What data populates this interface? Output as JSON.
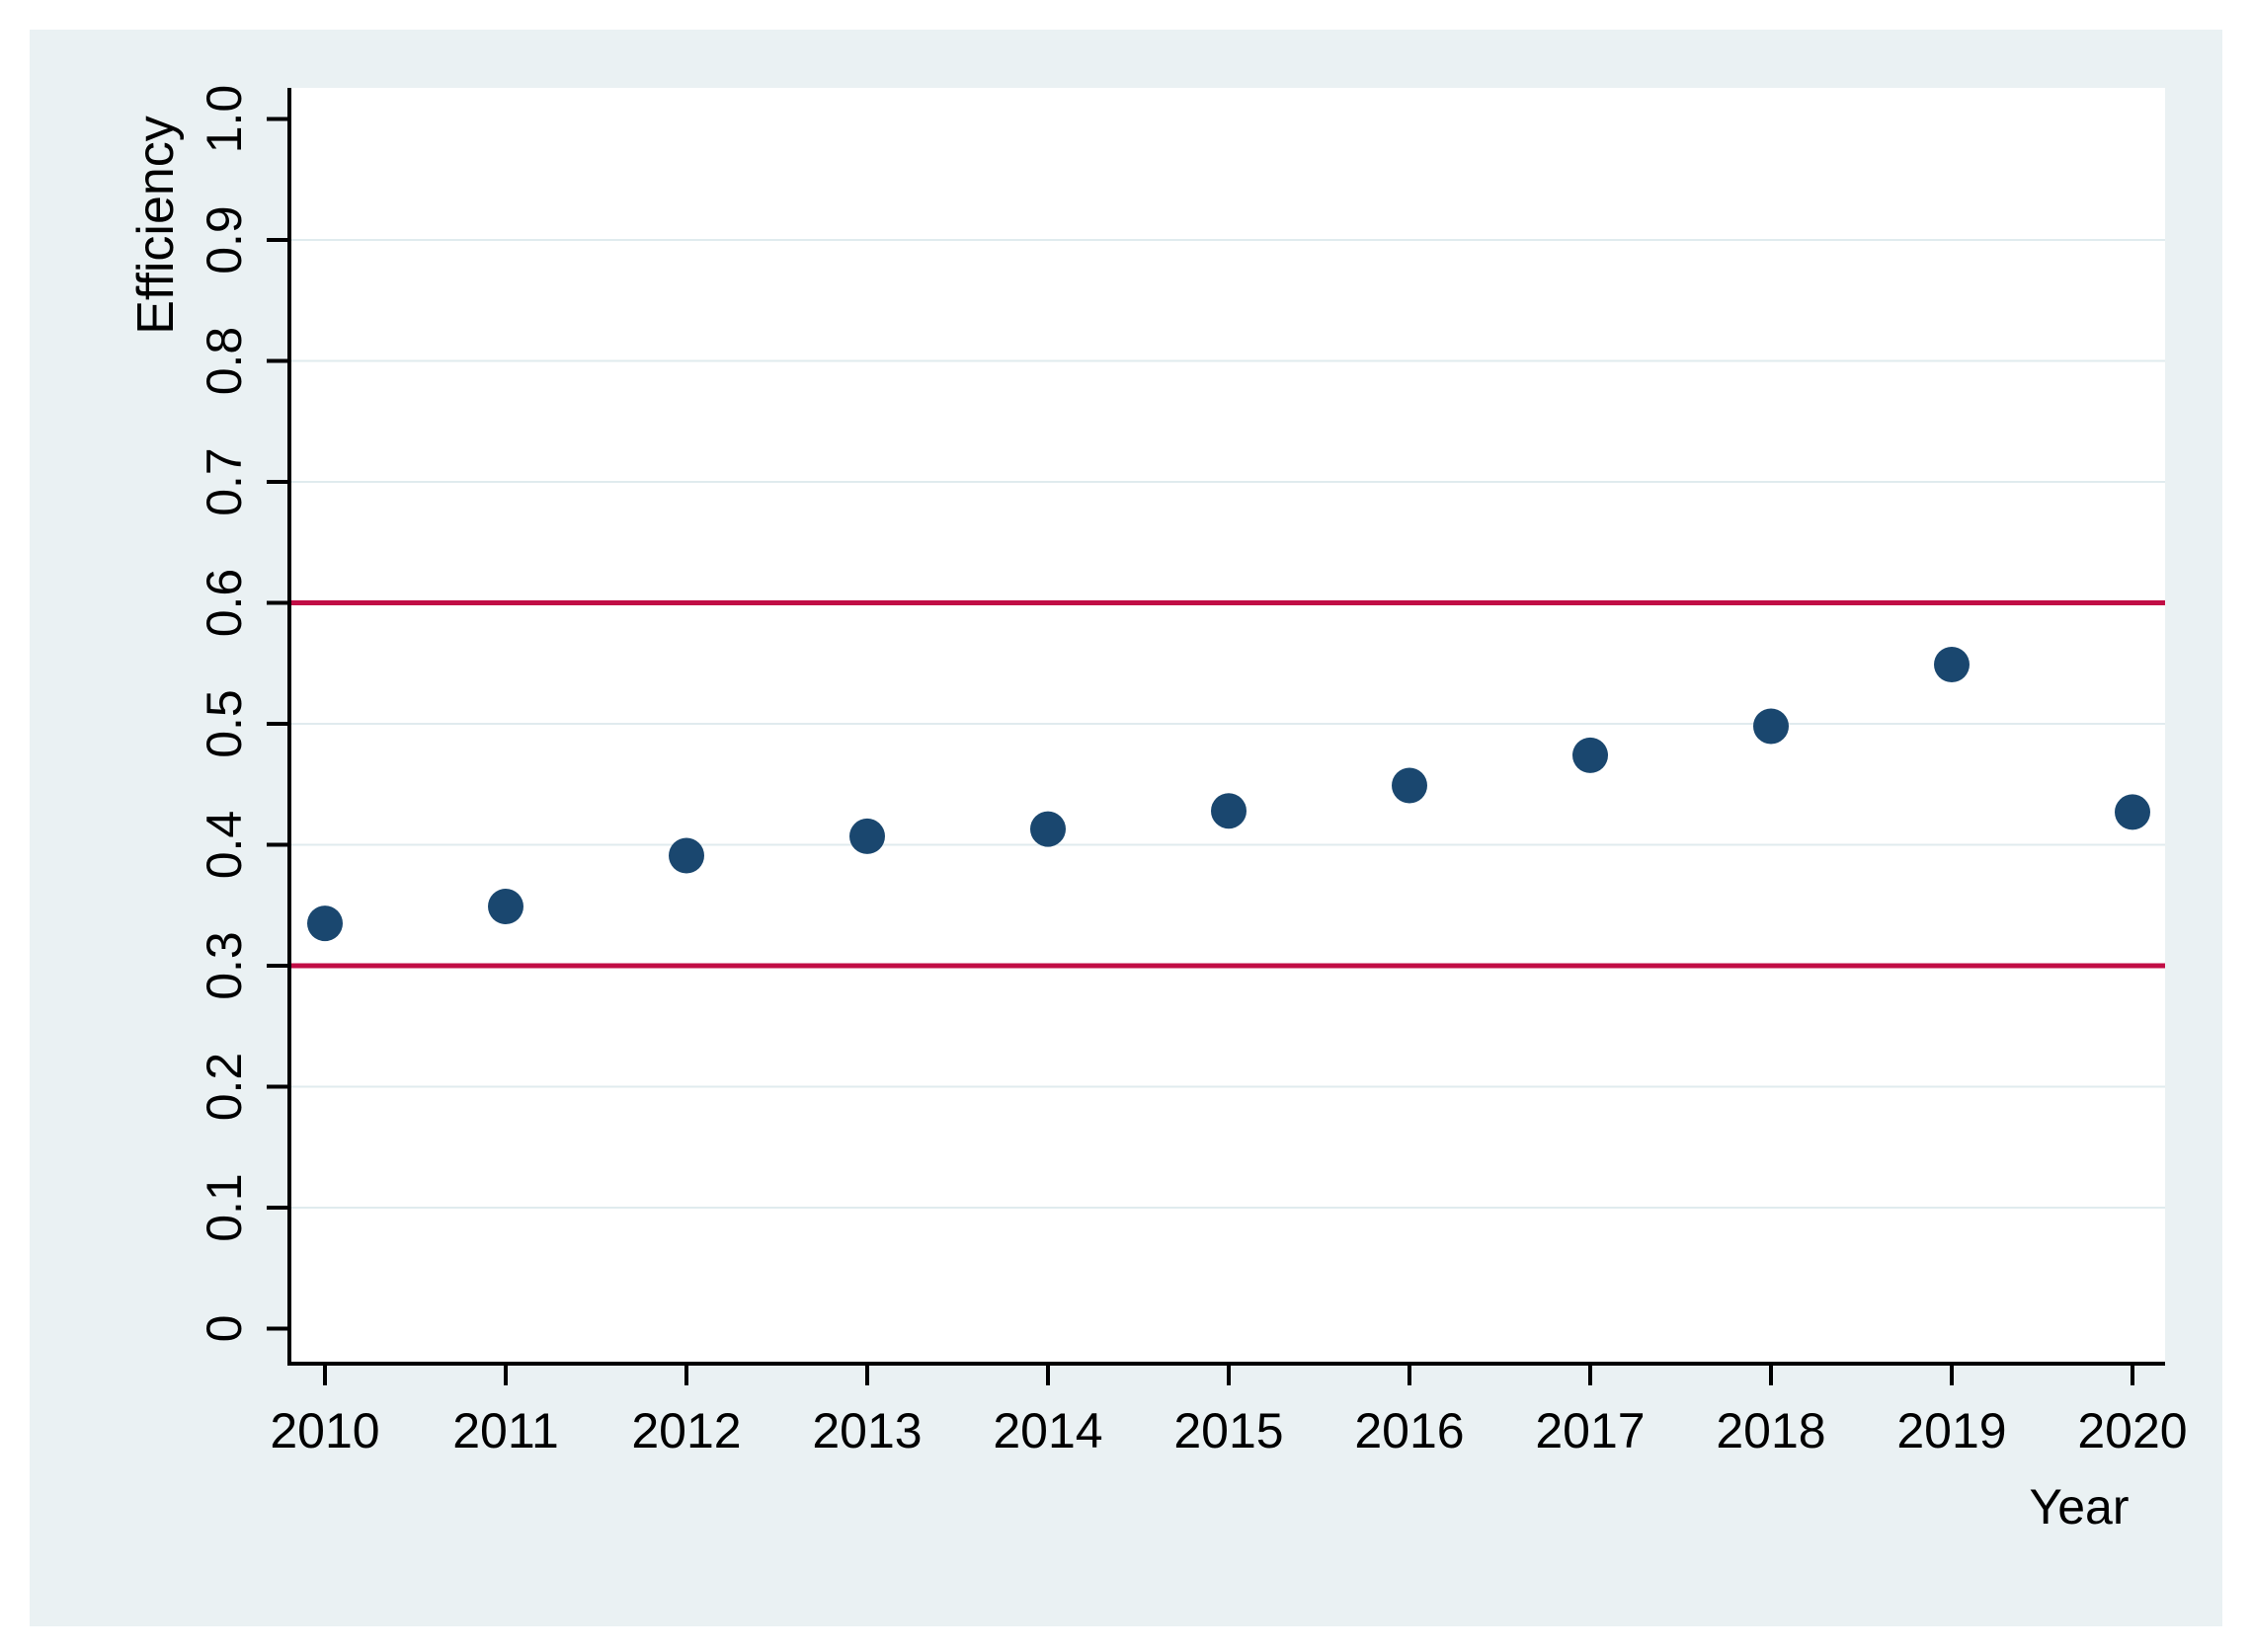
{
  "page": {
    "background": "#ffffff"
  },
  "colors": {
    "panel_bg": "#eaf1f3",
    "plot_bg": "#ffffff",
    "grid": "#e0ebee",
    "axis": "#000000",
    "text": "#000000",
    "marker": "#1a476f",
    "ref_line": "#c10d45"
  },
  "chart_data": {
    "type": "scatter",
    "title": "",
    "xlabel": "Year",
    "ylabel": "Efficiency",
    "legend": "none",
    "grid": true,
    "x": [
      2010,
      2011,
      2012,
      2013,
      2014,
      2015,
      2016,
      2017,
      2018,
      2019,
      2020
    ],
    "y": [
      0.335,
      0.349,
      0.391,
      0.407,
      0.413,
      0.428,
      0.449,
      0.474,
      0.498,
      0.549,
      0.427
    ],
    "series_name": "Efficiency",
    "xlim": [
      2009.8,
      2020.2
    ],
    "ylim": [
      0,
      1.03
    ],
    "x_tick_labels": [
      "2010",
      "2011",
      "2012",
      "2013",
      "2014",
      "2015",
      "2016",
      "2017",
      "2018",
      "2019",
      "2020"
    ],
    "y_tick_values": [
      0,
      0.1,
      0.2,
      0.3,
      0.4,
      0.5,
      0.6,
      0.7,
      0.8,
      0.9,
      1.0
    ],
    "y_tick_labels": [
      "0",
      "0.1",
      "0.2",
      "0.3",
      "0.4",
      "0.5",
      "0.6",
      "0.7",
      "0.8",
      "0.9",
      "1.0"
    ],
    "grid_tick_values": [
      0.1,
      0.2,
      0.3,
      0.4,
      0.5,
      0.6,
      0.7,
      0.8,
      0.9
    ],
    "ref_line_values": [
      0.3,
      0.6
    ]
  }
}
